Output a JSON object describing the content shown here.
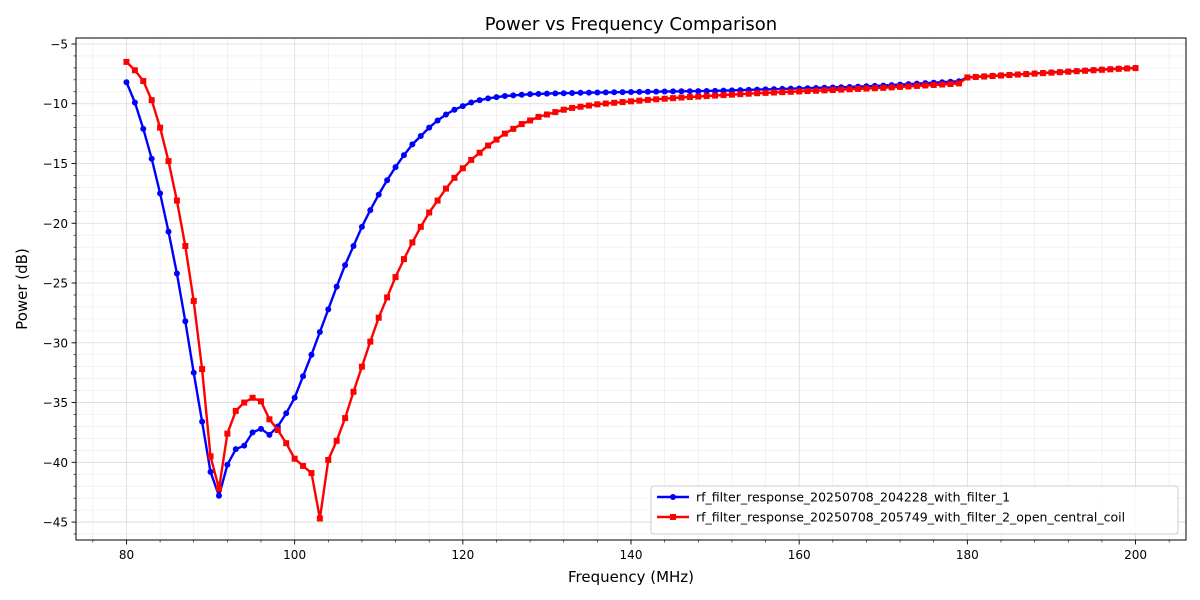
{
  "chart_data": {
    "type": "line",
    "title": "Power vs Frequency Comparison",
    "xlabel": "Frequency (MHz)",
    "ylabel": "Power (dB)",
    "xlim": [
      74,
      206
    ],
    "ylim": [
      -46.5,
      -4.5
    ],
    "xticks": [
      80,
      100,
      120,
      140,
      160,
      180,
      200
    ],
    "yticks": [
      -45,
      -40,
      -35,
      -30,
      -25,
      -20,
      -15,
      -10,
      -5
    ],
    "grid": true,
    "legend_position": "bottom-right",
    "x": [
      80,
      81,
      82,
      83,
      84,
      85,
      86,
      87,
      88,
      89,
      90,
      91,
      92,
      93,
      94,
      95,
      96,
      97,
      98,
      99,
      100,
      101,
      102,
      103,
      104,
      105,
      106,
      107,
      108,
      109,
      110,
      111,
      112,
      113,
      114,
      115,
      116,
      117,
      118,
      119,
      120,
      121,
      122,
      123,
      124,
      125,
      126,
      127,
      128,
      129,
      130,
      131,
      132,
      133,
      134,
      135,
      136,
      137,
      138,
      139,
      140,
      141,
      142,
      143,
      144,
      145,
      146,
      147,
      148,
      149,
      150,
      151,
      152,
      153,
      154,
      155,
      156,
      157,
      158,
      159,
      160,
      161,
      162,
      163,
      164,
      165,
      166,
      167,
      168,
      169,
      170,
      171,
      172,
      173,
      174,
      175,
      176,
      177,
      178,
      179,
      180,
      181,
      182,
      183,
      184,
      185,
      186,
      187,
      188,
      189,
      190,
      191,
      192,
      193,
      194,
      195,
      196,
      197,
      198,
      199,
      200
    ],
    "series": [
      {
        "name": "rf_filter_response_20250708_204228_with_filter_1",
        "color": "#0000ff",
        "marker": "circle",
        "values": [
          -8.2,
          -9.9,
          -12.1,
          -14.6,
          -17.5,
          -20.7,
          -24.2,
          -28.2,
          -32.5,
          -36.6,
          -40.8,
          -42.8,
          -40.2,
          -38.9,
          -38.6,
          -37.5,
          -37.2,
          -37.7,
          -37.0,
          -35.9,
          -34.6,
          -32.8,
          -31.0,
          -29.1,
          -27.2,
          -25.3,
          -23.5,
          -21.9,
          -20.3,
          -18.9,
          -17.6,
          -16.4,
          -15.3,
          -14.3,
          -13.4,
          -12.7,
          -12.0,
          -11.4,
          -10.9,
          -10.5,
          -10.2,
          -9.9,
          -9.7,
          -9.55,
          -9.45,
          -9.35,
          -9.3,
          -9.25,
          -9.2,
          -9.18,
          -9.15,
          -9.13,
          -9.12,
          -9.1,
          -9.08,
          -9.07,
          -9.06,
          -9.05,
          -9.04,
          -9.03,
          -9.02,
          -9.01,
          -9.0,
          -8.99,
          -8.98,
          -8.97,
          -8.96,
          -8.95,
          -8.94,
          -8.93,
          -8.92,
          -8.9,
          -8.88,
          -8.86,
          -8.84,
          -8.82,
          -8.8,
          -8.78,
          -8.76,
          -8.74,
          -8.72,
          -8.7,
          -8.68,
          -8.66,
          -8.64,
          -8.62,
          -8.6,
          -8.57,
          -8.54,
          -8.51,
          -8.48,
          -8.44,
          -8.4,
          -8.36,
          -8.32,
          -8.28,
          -8.24,
          -8.2,
          -8.16,
          -8.12,
          -7.8,
          -7.75,
          -7.7,
          -7.66,
          -7.62,
          -7.58,
          -7.54,
          -7.5,
          -7.46,
          -7.42,
          -7.38,
          -7.34,
          -7.3,
          -7.26,
          -7.22,
          -7.18,
          -7.14,
          -7.1,
          -7.06,
          -7.03,
          -7.0
        ]
      },
      {
        "name": "rf_filter_response_20250708_205749_with_filter_2_open_central_coil",
        "color": "#ff0000",
        "marker": "square",
        "values": [
          -6.5,
          -7.2,
          -8.1,
          -9.7,
          -12.0,
          -14.8,
          -18.1,
          -21.9,
          -26.5,
          -32.2,
          -39.5,
          -42.2,
          -37.6,
          -35.7,
          -35.0,
          -34.6,
          -34.9,
          -36.4,
          -37.3,
          -38.4,
          -39.7,
          -40.3,
          -40.9,
          -44.7,
          -39.8,
          -38.2,
          -36.3,
          -34.1,
          -32.0,
          -29.9,
          -27.9,
          -26.2,
          -24.5,
          -23.0,
          -21.6,
          -20.3,
          -19.1,
          -18.1,
          -17.1,
          -16.2,
          -15.4,
          -14.7,
          -14.1,
          -13.5,
          -13.0,
          -12.5,
          -12.1,
          -11.7,
          -11.4,
          -11.1,
          -10.9,
          -10.7,
          -10.5,
          -10.35,
          -10.25,
          -10.15,
          -10.05,
          -9.98,
          -9.92,
          -9.86,
          -9.8,
          -9.74,
          -9.68,
          -9.63,
          -9.58,
          -9.53,
          -9.48,
          -9.44,
          -9.4,
          -9.36,
          -9.32,
          -9.28,
          -9.24,
          -9.2,
          -9.16,
          -9.12,
          -9.09,
          -9.06,
          -9.03,
          -9.0,
          -8.97,
          -8.94,
          -8.91,
          -8.88,
          -8.85,
          -8.82,
          -8.79,
          -8.76,
          -8.73,
          -8.7,
          -8.67,
          -8.63,
          -8.59,
          -8.55,
          -8.51,
          -8.47,
          -8.43,
          -8.39,
          -8.35,
          -8.3,
          -7.8,
          -7.76,
          -7.72,
          -7.68,
          -7.64,
          -7.6,
          -7.56,
          -7.52,
          -7.48,
          -7.44,
          -7.4,
          -7.36,
          -7.32,
          -7.28,
          -7.24,
          -7.2,
          -7.16,
          -7.12,
          -7.08,
          -7.05,
          -7.02
        ]
      }
    ]
  }
}
